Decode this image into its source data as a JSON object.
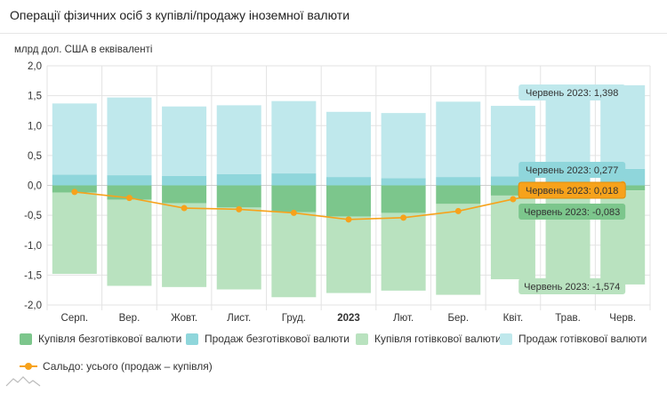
{
  "title": "Операції фізичних осіб з купівлі/продажу іноземної валюти",
  "chart_data": {
    "type": "bar",
    "stacked": true,
    "ylabel": "млрд дол. США в еквіваленті",
    "ylim": [
      -2.0,
      2.0
    ],
    "yticks": [
      "2,0",
      "1,5",
      "1,0",
      "0,5",
      "0,0",
      "-0,5",
      "-1,0",
      "-1,5",
      "-2,0"
    ],
    "ytick_values": [
      2.0,
      1.5,
      1.0,
      0.5,
      0.0,
      -0.5,
      -1.0,
      -1.5,
      -2.0
    ],
    "grid": true,
    "categories": [
      "Серп.",
      "Вер.",
      "Жовт.",
      "Лист.",
      "Груд.",
      "2023",
      "Лют.",
      "Бер.",
      "Квіт.",
      "Трав.",
      "Черв."
    ],
    "bold_categories": [
      "2023"
    ],
    "series": [
      {
        "name": "Купівля безготівкової валюти",
        "color": "#7cc68c",
        "kind": "bar",
        "stack": "neg",
        "values": [
          -0.12,
          -0.24,
          -0.3,
          -0.37,
          -0.45,
          -0.52,
          -0.46,
          -0.31,
          -0.17,
          -0.12,
          -0.083
        ]
      },
      {
        "name": "Продаж безготівкової валюти",
        "color": "#8fd6db",
        "kind": "bar",
        "stack": "pos",
        "values": [
          0.18,
          0.17,
          0.16,
          0.19,
          0.2,
          0.14,
          0.12,
          0.14,
          0.15,
          0.2,
          0.277
        ]
      },
      {
        "name": "Купівля готівкової валюти",
        "color": "#b9e2bf",
        "kind": "bar",
        "stack": "neg",
        "values": [
          -1.36,
          -1.44,
          -1.4,
          -1.37,
          -1.42,
          -1.28,
          -1.3,
          -1.52,
          -1.4,
          -1.52,
          -1.574
        ]
      },
      {
        "name": "Продаж готівкової валюти",
        "color": "#bfe8ec",
        "kind": "bar",
        "stack": "pos",
        "values": [
          1.19,
          1.3,
          1.16,
          1.15,
          1.21,
          1.09,
          1.09,
          1.26,
          1.18,
          1.36,
          1.398
        ]
      },
      {
        "name": "Сальдо: усього (продаж – купівля)",
        "color": "#f7a21b",
        "kind": "line",
        "values": [
          -0.11,
          -0.21,
          -0.38,
          -0.4,
          -0.46,
          -0.57,
          -0.54,
          -0.43,
          -0.23,
          -0.08,
          0.018
        ]
      }
    ],
    "tooltips": [
      {
        "text": "Червень 2023: 1,398",
        "color": "#bfe8ec",
        "text_color": "#333333",
        "series": 3
      },
      {
        "text": "Червень 2023: 0,277",
        "color": "#8fd6db",
        "text_color": "#333333",
        "series": 1
      },
      {
        "text": "Червень 2023: 0,018",
        "color": "#f7a21b",
        "text_color": "#333333",
        "series": 4
      },
      {
        "text": "Червень 2023: -0,083",
        "color": "#7cc68c",
        "text_color": "#333333",
        "series": 0
      },
      {
        "text": "Червень 2023: -1,574",
        "color": "#b9e2bf",
        "text_color": "#333333",
        "series": 2
      }
    ],
    "legend_position": "bottom"
  },
  "legend": {
    "items": [
      {
        "label": "Купівля безготівкової валюти",
        "color": "#7cc68c"
      },
      {
        "label": "Продаж безготівкової валюти",
        "color": "#8fd6db"
      },
      {
        "label": "Купівля готівкової валюти",
        "color": "#b9e2bf"
      },
      {
        "label": "Продаж готівкової валюти",
        "color": "#bfe8ec"
      }
    ],
    "line_label": "Сальдо: усього (продаж – купівля)"
  }
}
